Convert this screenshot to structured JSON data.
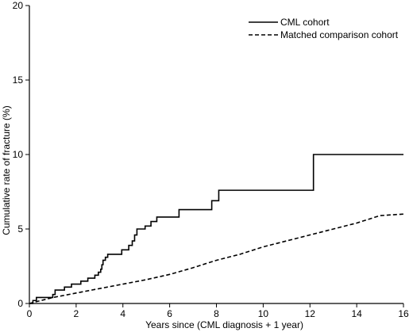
{
  "chart_data": {
    "type": "line",
    "title": "",
    "xlabel": "Years since (CML diagnosis + 1 year)",
    "ylabel": "Cumulative rate of fracture (%)",
    "xlim": [
      0,
      16
    ],
    "ylim": [
      0,
      20
    ],
    "x_ticks": [
      "0",
      "2",
      "4",
      "6",
      "8",
      "10",
      "12",
      "14",
      "16"
    ],
    "y_ticks": [
      "0",
      "5",
      "10",
      "15",
      "20"
    ],
    "grid": false,
    "legend_position": "top-right",
    "series": [
      {
        "name": "CML cohort",
        "style": "solid-step",
        "color": "#000000",
        "points": [
          [
            0,
            0
          ],
          [
            0.15,
            0.2
          ],
          [
            0.3,
            0.4
          ],
          [
            1.0,
            0.6
          ],
          [
            1.1,
            0.9
          ],
          [
            1.5,
            1.1
          ],
          [
            1.8,
            1.3
          ],
          [
            2.2,
            1.5
          ],
          [
            2.5,
            1.7
          ],
          [
            2.8,
            1.9
          ],
          [
            2.95,
            2.1
          ],
          [
            3.05,
            2.3
          ],
          [
            3.1,
            2.6
          ],
          [
            3.15,
            2.9
          ],
          [
            3.25,
            3.1
          ],
          [
            3.35,
            3.3
          ],
          [
            3.95,
            3.6
          ],
          [
            4.25,
            3.9
          ],
          [
            4.4,
            4.2
          ],
          [
            4.5,
            4.6
          ],
          [
            4.6,
            5.0
          ],
          [
            4.95,
            5.2
          ],
          [
            5.2,
            5.5
          ],
          [
            5.45,
            5.8
          ],
          [
            6.4,
            6.3
          ],
          [
            7.8,
            6.9
          ],
          [
            8.1,
            7.6
          ],
          [
            12.15,
            10.0
          ],
          [
            16,
            10.0
          ]
        ]
      },
      {
        "name": "Matched comparison cohort",
        "style": "dashed",
        "color": "#000000",
        "points": [
          [
            0,
            0
          ],
          [
            1,
            0.4
          ],
          [
            2,
            0.7
          ],
          [
            3,
            1.0
          ],
          [
            4,
            1.3
          ],
          [
            5,
            1.6
          ],
          [
            6,
            1.95
          ],
          [
            7,
            2.4
          ],
          [
            8,
            2.9
          ],
          [
            9,
            3.3
          ],
          [
            10,
            3.8
          ],
          [
            11,
            4.2
          ],
          [
            12,
            4.6
          ],
          [
            13,
            5.0
          ],
          [
            14,
            5.4
          ],
          [
            15,
            5.9
          ],
          [
            16,
            6.0
          ]
        ]
      }
    ]
  }
}
